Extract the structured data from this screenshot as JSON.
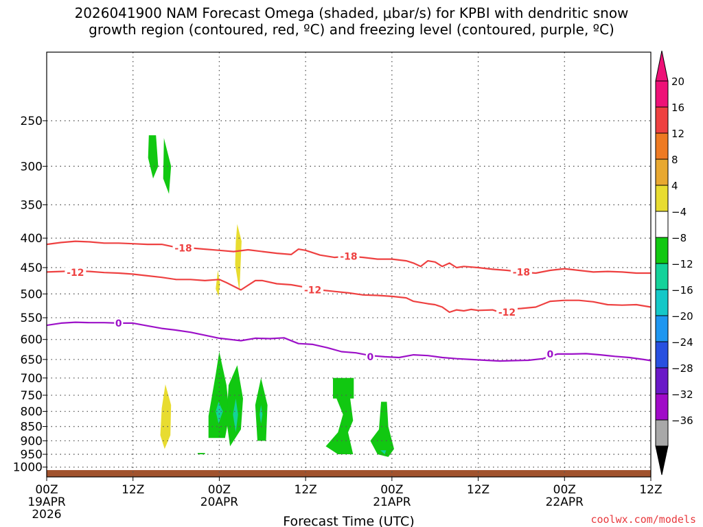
{
  "chart_data": {
    "type": "heatmap",
    "title_line1": "2026041900 NAM Forecast Omega (shaded, μbar/s) for KPBI with dendritic snow",
    "title_line2": "growth region (contoured, red, ºC) and freezing level (contoured, purple, ºC)",
    "xlabel": "Forecast Time (UTC)",
    "xlim": [
      0,
      84
    ],
    "ylim": [
      1040,
      190
    ],
    "y_scale": "log-pressure",
    "grid": "dotted",
    "x_ticks": [
      {
        "x": 0,
        "label": "00Z",
        "date": "19APR",
        "year": "2026"
      },
      {
        "x": 12,
        "label": "12Z"
      },
      {
        "x": 24,
        "label": "00Z",
        "date": "20APR"
      },
      {
        "x": 36,
        "label": "12Z"
      },
      {
        "x": 48,
        "label": "00Z",
        "date": "21APR"
      },
      {
        "x": 60,
        "label": "12Z"
      },
      {
        "x": 72,
        "label": "00Z",
        "date": "22APR"
      },
      {
        "x": 84,
        "label": "12Z"
      }
    ],
    "y_ticks": [
      {
        "p": 250,
        "label": "250"
      },
      {
        "p": 300,
        "label": "300"
      },
      {
        "p": 350,
        "label": "350"
      },
      {
        "p": 400,
        "label": "400"
      },
      {
        "p": 450,
        "label": "450"
      },
      {
        "p": 500,
        "label": "500"
      },
      {
        "p": 550,
        "label": "550"
      },
      {
        "p": 600,
        "label": "600"
      },
      {
        "p": 650,
        "label": "650"
      },
      {
        "p": 700,
        "label": "700"
      },
      {
        "p": 750,
        "label": "750"
      },
      {
        "p": 800,
        "label": "800"
      },
      {
        "p": 850,
        "label": "850"
      },
      {
        "p": 900,
        "label": "900"
      },
      {
        "p": 950,
        "label": "950"
      },
      {
        "p": 1000,
        "label": "1000"
      }
    ],
    "colorbar": [
      {
        "label": "20",
        "color": "#ee1177"
      },
      {
        "label": "16",
        "color": "#ee4040"
      },
      {
        "label": "12",
        "color": "#ee7a22"
      },
      {
        "label": "8",
        "color": "#e8a830"
      },
      {
        "label": "4",
        "color": "#e8dc30"
      },
      {
        "label": "−4",
        "color": "#ffffff"
      },
      {
        "label": "−8",
        "color": "#11c811"
      },
      {
        "label": "−12",
        "color": "#14d29a"
      },
      {
        "label": "−16",
        "color": "#14c8c8"
      },
      {
        "label": "−20",
        "color": "#1e96f0"
      },
      {
        "label": "−24",
        "color": "#2850e0"
      },
      {
        "label": "−28",
        "color": "#6a18c8"
      },
      {
        "label": "−32",
        "color": "#a00ac8"
      },
      {
        "label": "−36",
        "color": "#a8a8a8"
      }
    ],
    "colorbar_top_color": "#ee1177",
    "colorbar_bottom_color": "#000000",
    "ground_color": "#a0522d",
    "ground_top_p": 1012,
    "contours": [
      {
        "level": -18,
        "label": "-18",
        "color": "#ee4040",
        "points": [
          [
            0,
            410
          ],
          [
            2,
            407
          ],
          [
            4,
            405
          ],
          [
            6,
            406
          ],
          [
            8,
            408
          ],
          [
            10,
            408
          ],
          [
            12,
            409
          ],
          [
            14,
            410
          ],
          [
            16,
            410
          ],
          [
            18,
            415
          ],
          [
            20,
            416
          ],
          [
            22,
            418
          ],
          [
            24,
            420
          ],
          [
            26,
            422
          ],
          [
            28,
            419
          ],
          [
            30,
            422
          ],
          [
            32,
            425
          ],
          [
            34,
            427
          ],
          [
            35,
            418
          ],
          [
            36,
            420
          ],
          [
            38,
            428
          ],
          [
            40,
            432
          ],
          [
            42,
            430
          ],
          [
            44,
            432
          ],
          [
            46,
            435
          ],
          [
            48,
            435
          ],
          [
            50,
            438
          ],
          [
            51,
            442
          ],
          [
            52,
            448
          ],
          [
            53,
            438
          ],
          [
            54,
            440
          ],
          [
            55,
            448
          ],
          [
            56,
            442
          ],
          [
            57,
            450
          ],
          [
            58,
            448
          ],
          [
            60,
            450
          ],
          [
            62,
            453
          ],
          [
            64,
            455
          ],
          [
            66,
            458
          ],
          [
            68,
            460
          ],
          [
            70,
            455
          ],
          [
            72,
            452
          ],
          [
            74,
            455
          ],
          [
            76,
            458
          ],
          [
            78,
            457
          ],
          [
            80,
            458
          ],
          [
            82,
            460
          ],
          [
            84,
            460
          ]
        ],
        "label_positions": [
          [
            19,
            416
          ],
          [
            42,
            430
          ],
          [
            66,
            458
          ]
        ]
      },
      {
        "level": -12,
        "label": "-12",
        "color": "#ee4040",
        "points": [
          [
            0,
            458
          ],
          [
            2,
            457
          ],
          [
            4,
            456
          ],
          [
            6,
            457
          ],
          [
            8,
            459
          ],
          [
            10,
            460
          ],
          [
            12,
            462
          ],
          [
            14,
            465
          ],
          [
            16,
            468
          ],
          [
            18,
            472
          ],
          [
            20,
            472
          ],
          [
            22,
            474
          ],
          [
            24,
            472
          ],
          [
            25,
            478
          ],
          [
            27,
            492
          ],
          [
            29,
            474
          ],
          [
            30,
            474
          ],
          [
            32,
            480
          ],
          [
            34,
            482
          ],
          [
            36,
            487
          ],
          [
            38,
            492
          ],
          [
            40,
            495
          ],
          [
            42,
            498
          ],
          [
            44,
            502
          ],
          [
            46,
            503
          ],
          [
            48,
            505
          ],
          [
            50,
            508
          ],
          [
            51,
            515
          ],
          [
            53,
            520
          ],
          [
            54,
            522
          ],
          [
            55,
            527
          ],
          [
            56,
            538
          ],
          [
            57,
            533
          ],
          [
            58,
            535
          ],
          [
            59,
            532
          ],
          [
            60,
            534
          ],
          [
            62,
            533
          ],
          [
            63,
            538
          ],
          [
            64,
            532
          ],
          [
            66,
            530
          ],
          [
            68,
            527
          ],
          [
            70,
            515
          ],
          [
            72,
            513
          ],
          [
            74,
            513
          ],
          [
            76,
            516
          ],
          [
            78,
            522
          ],
          [
            80,
            523
          ],
          [
            82,
            522
          ],
          [
            84,
            527
          ]
        ],
        "label_positions": [
          [
            4,
            459
          ],
          [
            37,
            492
          ],
          [
            64,
            538
          ]
        ]
      },
      {
        "level": 0,
        "label": "0",
        "color": "#9c10c8",
        "points": [
          [
            0,
            567
          ],
          [
            2,
            562
          ],
          [
            4,
            560
          ],
          [
            6,
            561
          ],
          [
            8,
            561
          ],
          [
            10,
            562
          ],
          [
            12,
            562
          ],
          [
            14,
            568
          ],
          [
            16,
            574
          ],
          [
            18,
            578
          ],
          [
            20,
            583
          ],
          [
            22,
            590
          ],
          [
            24,
            597
          ],
          [
            26,
            601
          ],
          [
            27,
            603
          ],
          [
            29,
            597
          ],
          [
            31,
            598
          ],
          [
            33,
            596
          ],
          [
            35,
            610
          ],
          [
            37,
            612
          ],
          [
            39,
            620
          ],
          [
            41,
            630
          ],
          [
            43,
            633
          ],
          [
            45,
            640
          ],
          [
            47,
            643
          ],
          [
            49,
            645
          ],
          [
            51,
            638
          ],
          [
            53,
            640
          ],
          [
            55,
            645
          ],
          [
            57,
            648
          ],
          [
            59,
            650
          ],
          [
            61,
            652
          ],
          [
            63,
            654
          ],
          [
            65,
            653
          ],
          [
            67,
            652
          ],
          [
            69,
            648
          ],
          [
            71,
            636
          ],
          [
            73,
            636
          ],
          [
            75,
            635
          ],
          [
            77,
            638
          ],
          [
            79,
            642
          ],
          [
            81,
            645
          ],
          [
            83,
            650
          ],
          [
            84,
            653
          ]
        ],
        "label_positions": [
          [
            10,
            562
          ],
          [
            45,
            643
          ],
          [
            70,
            636
          ]
        ]
      }
    ],
    "omega_regions": [
      {
        "color": "#11c811",
        "points": [
          [
            14.2,
            265
          ],
          [
            15.2,
            265
          ],
          [
            15.5,
            300
          ],
          [
            14.8,
            315
          ],
          [
            14.1,
            290
          ]
        ]
      },
      {
        "color": "#11c811",
        "points": [
          [
            16.3,
            268
          ],
          [
            17.3,
            300
          ],
          [
            17.0,
            335
          ],
          [
            16.2,
            315
          ]
        ]
      },
      {
        "color": "#e8dc30",
        "points": [
          [
            26.5,
            378
          ],
          [
            27.1,
            405
          ],
          [
            26.8,
            495
          ],
          [
            26.2,
            445
          ],
          [
            26.3,
            405
          ]
        ]
      },
      {
        "color": "#e8dc30",
        "points": [
          [
            23.8,
            455
          ],
          [
            24.1,
            480
          ],
          [
            23.9,
            505
          ],
          [
            23.5,
            490
          ]
        ]
      },
      {
        "color": "#e8dc30",
        "points": [
          [
            16.5,
            718
          ],
          [
            17.3,
            780
          ],
          [
            17.2,
            880
          ],
          [
            16.4,
            930
          ],
          [
            15.8,
            880
          ],
          [
            16.0,
            790
          ]
        ]
      },
      {
        "color": "#11c811",
        "points": [
          [
            24.0,
            630
          ],
          [
            25.0,
            720
          ],
          [
            25.4,
            810
          ],
          [
            24.8,
            890
          ],
          [
            22.5,
            890
          ],
          [
            22.5,
            815
          ],
          [
            23.5,
            690
          ]
        ]
      },
      {
        "color": "#14d29a",
        "points": [
          [
            23.9,
            770
          ],
          [
            24.5,
            800
          ],
          [
            23.9,
            840
          ],
          [
            23.5,
            800
          ]
        ]
      },
      {
        "color": "#11c811",
        "points": [
          [
            26.5,
            665
          ],
          [
            27.3,
            760
          ],
          [
            27.0,
            860
          ],
          [
            25.5,
            920
          ],
          [
            25.0,
            830
          ],
          [
            25.3,
            720
          ]
        ]
      },
      {
        "color": "#14d29a",
        "points": [
          [
            26.3,
            760
          ],
          [
            26.6,
            810
          ],
          [
            26.3,
            870
          ],
          [
            25.9,
            810
          ]
        ]
      },
      {
        "color": "#11c811",
        "points": [
          [
            29.8,
            700
          ],
          [
            30.7,
            780
          ],
          [
            30.5,
            900
          ],
          [
            29.3,
            900
          ],
          [
            29.0,
            780
          ]
        ]
      },
      {
        "color": "#14d29a",
        "points": [
          [
            29.8,
            780
          ],
          [
            30.0,
            810
          ],
          [
            29.8,
            840
          ],
          [
            29.6,
            810
          ]
        ]
      },
      {
        "color": "#11c811",
        "points": [
          [
            39.8,
            700
          ],
          [
            42.7,
            700
          ],
          [
            42.7,
            760
          ],
          [
            42.2,
            760
          ],
          [
            42.6,
            830
          ],
          [
            41.9,
            870
          ],
          [
            42.6,
            950
          ],
          [
            40.5,
            950
          ],
          [
            38.8,
            920
          ],
          [
            40.5,
            870
          ],
          [
            41.2,
            810
          ],
          [
            40.3,
            760
          ],
          [
            39.8,
            760
          ]
        ]
      },
      {
        "color": "#11c811",
        "points": [
          [
            46.5,
            770
          ],
          [
            47.3,
            770
          ],
          [
            47.5,
            850
          ],
          [
            48.3,
            930
          ],
          [
            47.5,
            960
          ],
          [
            46.0,
            950
          ],
          [
            45.0,
            900
          ],
          [
            46.2,
            860
          ]
        ]
      },
      {
        "color": "#14d29a",
        "points": [
          [
            46.4,
            935
          ],
          [
            47.2,
            935
          ],
          [
            47.0,
            950
          ]
        ]
      },
      {
        "color": "#11c811",
        "points": [
          [
            21.0,
            945
          ],
          [
            22.0,
            945
          ],
          [
            22.0,
            950
          ],
          [
            21.0,
            950
          ]
        ]
      }
    ]
  },
  "footer": {
    "credit": "coolwx.com/models"
  }
}
